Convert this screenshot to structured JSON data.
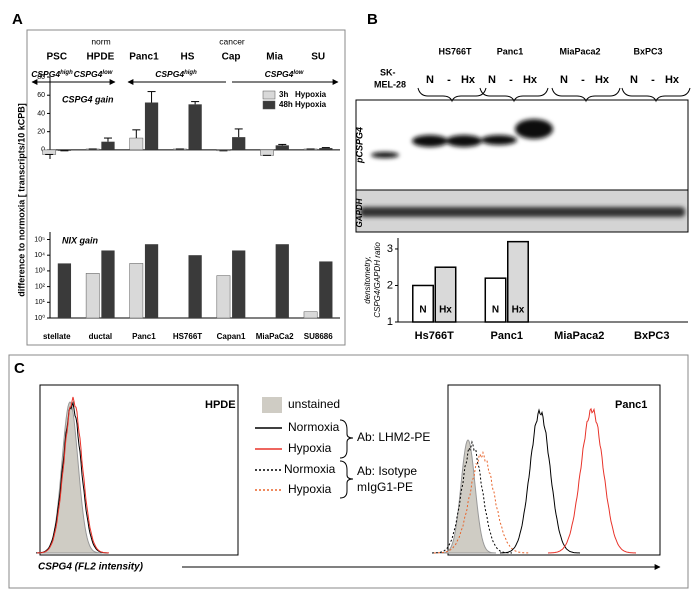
{
  "panels": {
    "A": {
      "letter": "A",
      "group_notes": [
        "norm",
        "cancer"
      ],
      "arrow_labels": [
        {
          "gene": "CSPG4",
          "sup": "high"
        },
        {
          "gene": "CSPG4",
          "sup": "low"
        },
        {
          "gene": "CSPG4",
          "sup": "high"
        },
        {
          "gene": "CSPG4",
          "sup": "low"
        }
      ]
    },
    "B": {
      "letter": "B",
      "cell_lines": [
        "HS766T",
        "Panc1",
        "MiaPaca2",
        "BxPC3"
      ],
      "control": [
        "SK-",
        "MEL-28"
      ],
      "lanes": [
        "N",
        "-",
        "Hx"
      ],
      "blot_labels": [
        "pCSPG4",
        "GAPDH"
      ]
    },
    "C": {
      "letter": "C",
      "titles": [
        "HPDE",
        "Panc1"
      ],
      "legend": [
        "unstained",
        "Normoxia",
        "Hypoxia",
        "Normoxia",
        "Hypoxia"
      ],
      "antibodies": [
        "Ab: LHM2-PE",
        "Ab: Isotype",
        "mIgG1-PE"
      ],
      "x_label": "CSPG4 (FL2 intensity)"
    }
  },
  "chart_data": [
    {
      "type": "bar",
      "title": "CSPG4 gain",
      "y_label": [
        "difference to normoxia  [ transcripts/10 kCPB]"
      ],
      "categories": [
        "PSC",
        "HPDE",
        "Panc1",
        "HS",
        "Cap",
        "Mia",
        "SU"
      ],
      "series": [
        {
          "name": "3h   Hypoxia",
          "color": "#d9d9d9",
          "values": [
            -5,
            1,
            13,
            1,
            -1,
            -6,
            1
          ],
          "errors": [
            0,
            0,
            9,
            0,
            0,
            0,
            0
          ]
        },
        {
          "name": "48h Hypoxia",
          "color": "#3a3a3a",
          "values": [
            -1,
            9,
            52,
            50,
            14,
            5,
            2
          ],
          "errors": [
            0,
            4,
            12,
            3,
            9,
            1,
            0.5
          ]
        }
      ],
      "ylim": [
        -10,
        80
      ],
      "yticks": [
        0,
        20,
        40,
        60,
        80
      ]
    },
    {
      "type": "bar",
      "title": "NIX gain",
      "log": true,
      "categories": [
        "stellate",
        "ductal",
        "Panc1",
        "HS766T",
        "Capan1",
        "MiaPaCa2",
        "SU8686"
      ],
      "series": [
        {
          "color": "#d9d9d9",
          "values": [
            1,
            700,
            3000,
            1,
            500,
            1,
            2.5
          ]
        },
        {
          "color": "#3a3a3a",
          "values": [
            3000,
            20000,
            50000,
            10000,
            20000,
            50000,
            4000
          ]
        }
      ],
      "ylim": [
        1,
        300000
      ],
      "yticks": [
        {
          "value": 1,
          "label": "10⁰"
        },
        {
          "value": 10,
          "label": "10¹"
        },
        {
          "value": 100,
          "label": "10²"
        },
        {
          "value": 1000,
          "label": "10³"
        },
        {
          "value": 10000,
          "label": "10⁴"
        },
        {
          "value": 100000,
          "label": "10⁵"
        }
      ]
    },
    {
      "type": "bar",
      "y_label": [
        "densitometry,",
        "CSPG4/GAPDH ratio"
      ],
      "categories": [
        "Hs766T",
        "Panc1",
        "MiaPaca2",
        "BxPC3"
      ],
      "series": [
        {
          "name": "N",
          "color": "#ffffff",
          "values": [
            2.0,
            2.2,
            null,
            null
          ]
        },
        {
          "name": "Hx",
          "color": "#d9d9d9",
          "values": [
            2.5,
            3.2,
            null,
            null
          ]
        }
      ],
      "ylim": [
        1,
        3.3
      ],
      "yticks": [
        1,
        2,
        3
      ]
    }
  ]
}
